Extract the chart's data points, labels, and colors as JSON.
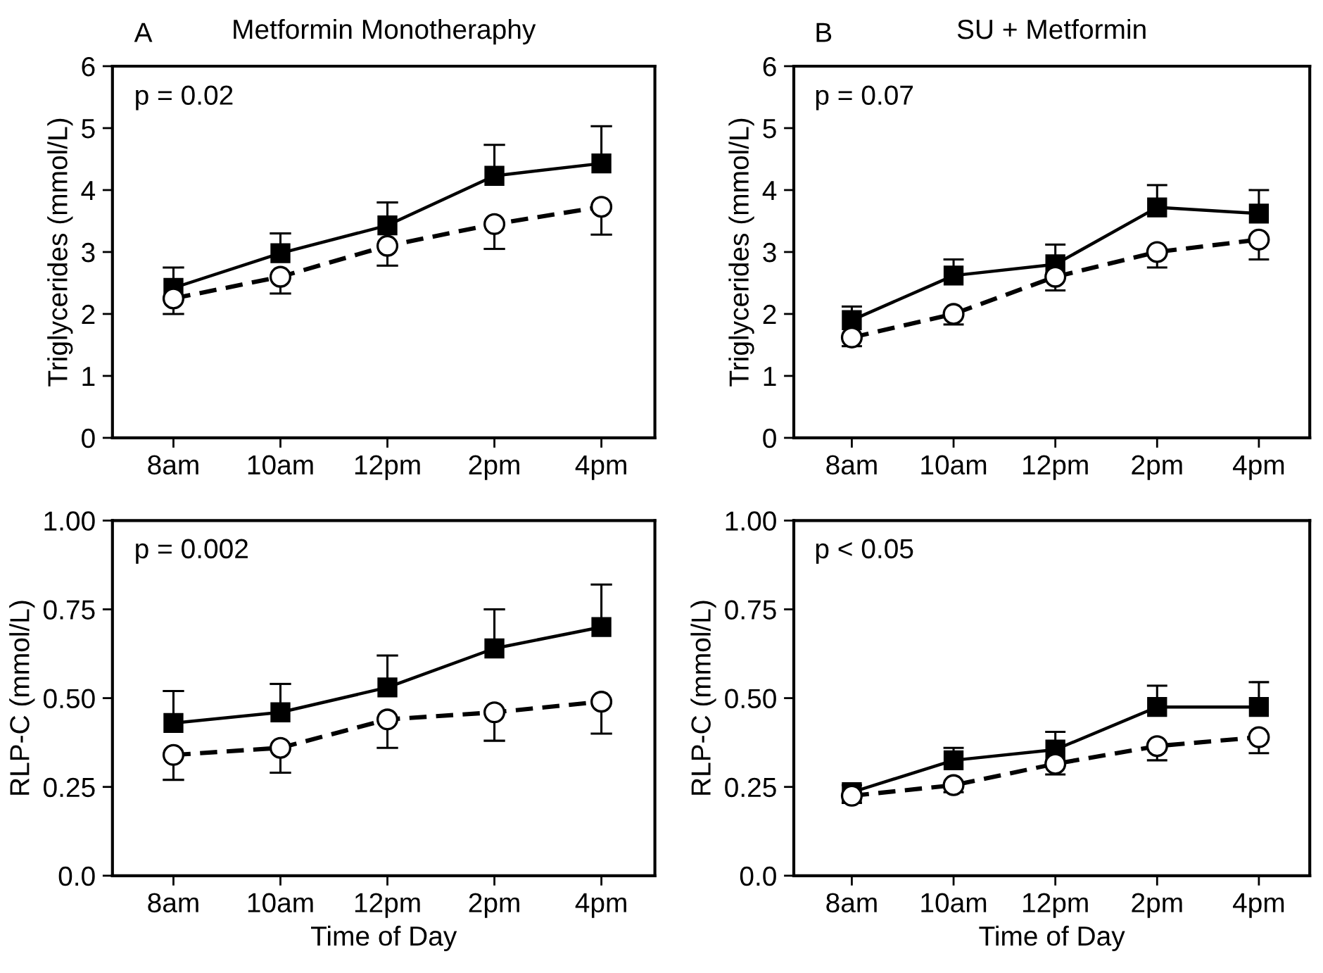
{
  "chart_data": [
    {
      "type": "line",
      "title": "Metformin Monotheraphy",
      "ylabel": "Triglycerides (mmol/L)",
      "annotations": [
        "A",
        "p = 0.02"
      ],
      "categories": [
        "8am",
        "10am",
        "12pm",
        "2pm",
        "4pm"
      ],
      "ylim": [
        0,
        6
      ],
      "yticks": [
        0,
        1,
        2,
        3,
        4,
        5,
        6
      ],
      "grid": false,
      "series": [
        {
          "color": "#000000",
          "marker": "square",
          "line_style": "solid",
          "values": [
            2.42,
            2.98,
            3.43,
            4.23,
            4.43
          ],
          "errors": [
            [
              2.42,
              2.75
            ],
            [
              2.98,
              3.3
            ],
            [
              3.43,
              3.8
            ],
            [
              4.23,
              4.73
            ],
            [
              4.43,
              5.03
            ]
          ]
        },
        {
          "color": "#000000",
          "marker": "circle",
          "line_style": "dashed",
          "values": [
            2.25,
            2.6,
            3.1,
            3.45,
            3.73
          ],
          "errors": [
            [
              2.0,
              2.25
            ],
            [
              2.33,
              2.6
            ],
            [
              2.78,
              3.1
            ],
            [
              3.05,
              3.45
            ],
            [
              3.28,
              3.73
            ]
          ]
        }
      ]
    },
    {
      "type": "line",
      "title": "SU + Metformin",
      "ylabel": "Triglycerides (mmol/L)",
      "annotations": [
        "B",
        "p = 0.07"
      ],
      "categories": [
        "8am",
        "10am",
        "12pm",
        "2pm",
        "4pm"
      ],
      "ylim": [
        0,
        6
      ],
      "yticks": [
        0,
        1,
        2,
        3,
        4,
        5,
        6
      ],
      "grid": false,
      "series": [
        {
          "color": "#000000",
          "marker": "square",
          "line_style": "solid",
          "values": [
            1.9,
            2.62,
            2.8,
            3.72,
            3.62
          ],
          "errors": [
            [
              1.9,
              2.12
            ],
            [
              2.62,
              2.88
            ],
            [
              2.8,
              3.12
            ],
            [
              3.72,
              4.08
            ],
            [
              3.62,
              4.0
            ]
          ]
        },
        {
          "color": "#000000",
          "marker": "circle",
          "line_style": "dashed",
          "values": [
            1.62,
            2.0,
            2.6,
            3.0,
            3.2
          ],
          "errors": [
            [
              1.48,
              1.62
            ],
            [
              1.83,
              2.0
            ],
            [
              2.38,
              2.6
            ],
            [
              2.75,
              3.0
            ],
            [
              2.88,
              3.2
            ]
          ]
        }
      ]
    },
    {
      "type": "line",
      "xlabel": "Time of Day",
      "ylabel": "RLP-C (mmol/L)",
      "annotations": [
        "p = 0.002"
      ],
      "categories": [
        "8am",
        "10am",
        "12pm",
        "2pm",
        "4pm"
      ],
      "ylim": [
        0,
        1
      ],
      "yticks": [
        {
          "value": 0,
          "label": "0.0"
        },
        0.25,
        {
          "value": 0.5,
          "label": "0.50"
        },
        0.75,
        {
          "value": 1,
          "label": "1.00"
        }
      ],
      "grid": false,
      "series": [
        {
          "color": "#000000",
          "marker": "square",
          "line_style": "solid",
          "values": [
            0.43,
            0.46,
            0.53,
            0.64,
            0.7
          ],
          "errors": [
            [
              0.43,
              0.52
            ],
            [
              0.46,
              0.54
            ],
            [
              0.53,
              0.62
            ],
            [
              0.64,
              0.75
            ],
            [
              0.7,
              0.82
            ]
          ]
        },
        {
          "color": "#000000",
          "marker": "circle",
          "line_style": "dashed",
          "values": [
            0.34,
            0.36,
            0.44,
            0.46,
            0.49
          ],
          "errors": [
            [
              0.27,
              0.34
            ],
            [
              0.29,
              0.36
            ],
            [
              0.36,
              0.44
            ],
            [
              0.38,
              0.46
            ],
            [
              0.4,
              0.49
            ]
          ]
        }
      ]
    },
    {
      "type": "line",
      "xlabel": "Time of Day",
      "ylabel": "RLP-C (mmol/L)",
      "annotations": [
        "p < 0.05"
      ],
      "categories": [
        "8am",
        "10am",
        "12pm",
        "2pm",
        "4pm"
      ],
      "ylim": [
        0,
        1
      ],
      "yticks": [
        {
          "value": 0,
          "label": "0.0"
        },
        0.25,
        {
          "value": 0.5,
          "label": "0.50"
        },
        0.75,
        {
          "value": 1,
          "label": "1.00"
        }
      ],
      "grid": false,
      "series": [
        {
          "color": "#000000",
          "marker": "square",
          "line_style": "solid",
          "values": [
            0.235,
            0.325,
            0.355,
            0.475,
            0.475
          ],
          "errors": [
            [
              0.235,
              0.255
            ],
            [
              0.325,
              0.36
            ],
            [
              0.355,
              0.405
            ],
            [
              0.475,
              0.535
            ],
            [
              0.475,
              0.545
            ]
          ]
        },
        {
          "color": "#000000",
          "marker": "circle",
          "line_style": "dashed",
          "values": [
            0.225,
            0.255,
            0.315,
            0.365,
            0.39
          ],
          "errors": [
            [
              0.205,
              0.225
            ],
            [
              0.235,
              0.255
            ],
            [
              0.285,
              0.315
            ],
            [
              0.325,
              0.365
            ],
            [
              0.345,
              0.39
            ]
          ]
        }
      ]
    }
  ]
}
